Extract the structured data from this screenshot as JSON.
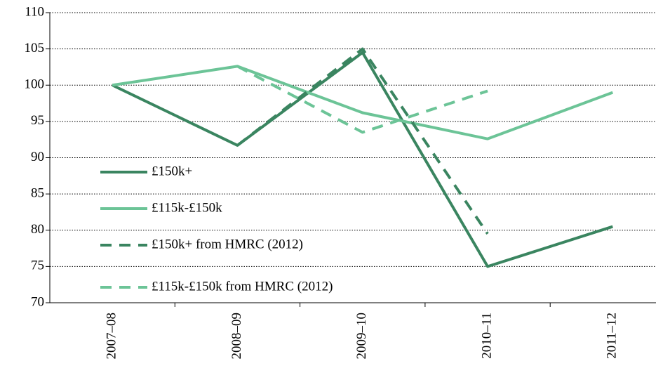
{
  "chart_data": {
    "type": "line",
    "categories": [
      "2007–08",
      "2008–09",
      "2009–10",
      "2010–11",
      "2011–12"
    ],
    "series": [
      {
        "name": "£150k+",
        "color": "#3a8560",
        "style": "solid",
        "values": [
          100,
          91.7,
          104.5,
          75,
          80.5
        ]
      },
      {
        "name": "£115k-£150k",
        "color": "#6cc497",
        "style": "solid",
        "values": [
          100,
          102.6,
          96.2,
          92.6,
          99
        ]
      },
      {
        "name": "£150k+ from HMRC (2012)",
        "color": "#3a8560",
        "style": "dashed",
        "values": [
          null,
          91.7,
          105,
          79.5,
          null
        ]
      },
      {
        "name": "£115k-£150k from HMRC (2012)",
        "color": "#6cc497",
        "style": "dashed",
        "values": [
          null,
          102.6,
          93.5,
          99.2,
          null
        ]
      }
    ],
    "ylim": [
      70,
      110
    ],
    "yticks": [
      70,
      75,
      80,
      85,
      90,
      95,
      100,
      105,
      110
    ],
    "grid": true,
    "legend": "left"
  }
}
